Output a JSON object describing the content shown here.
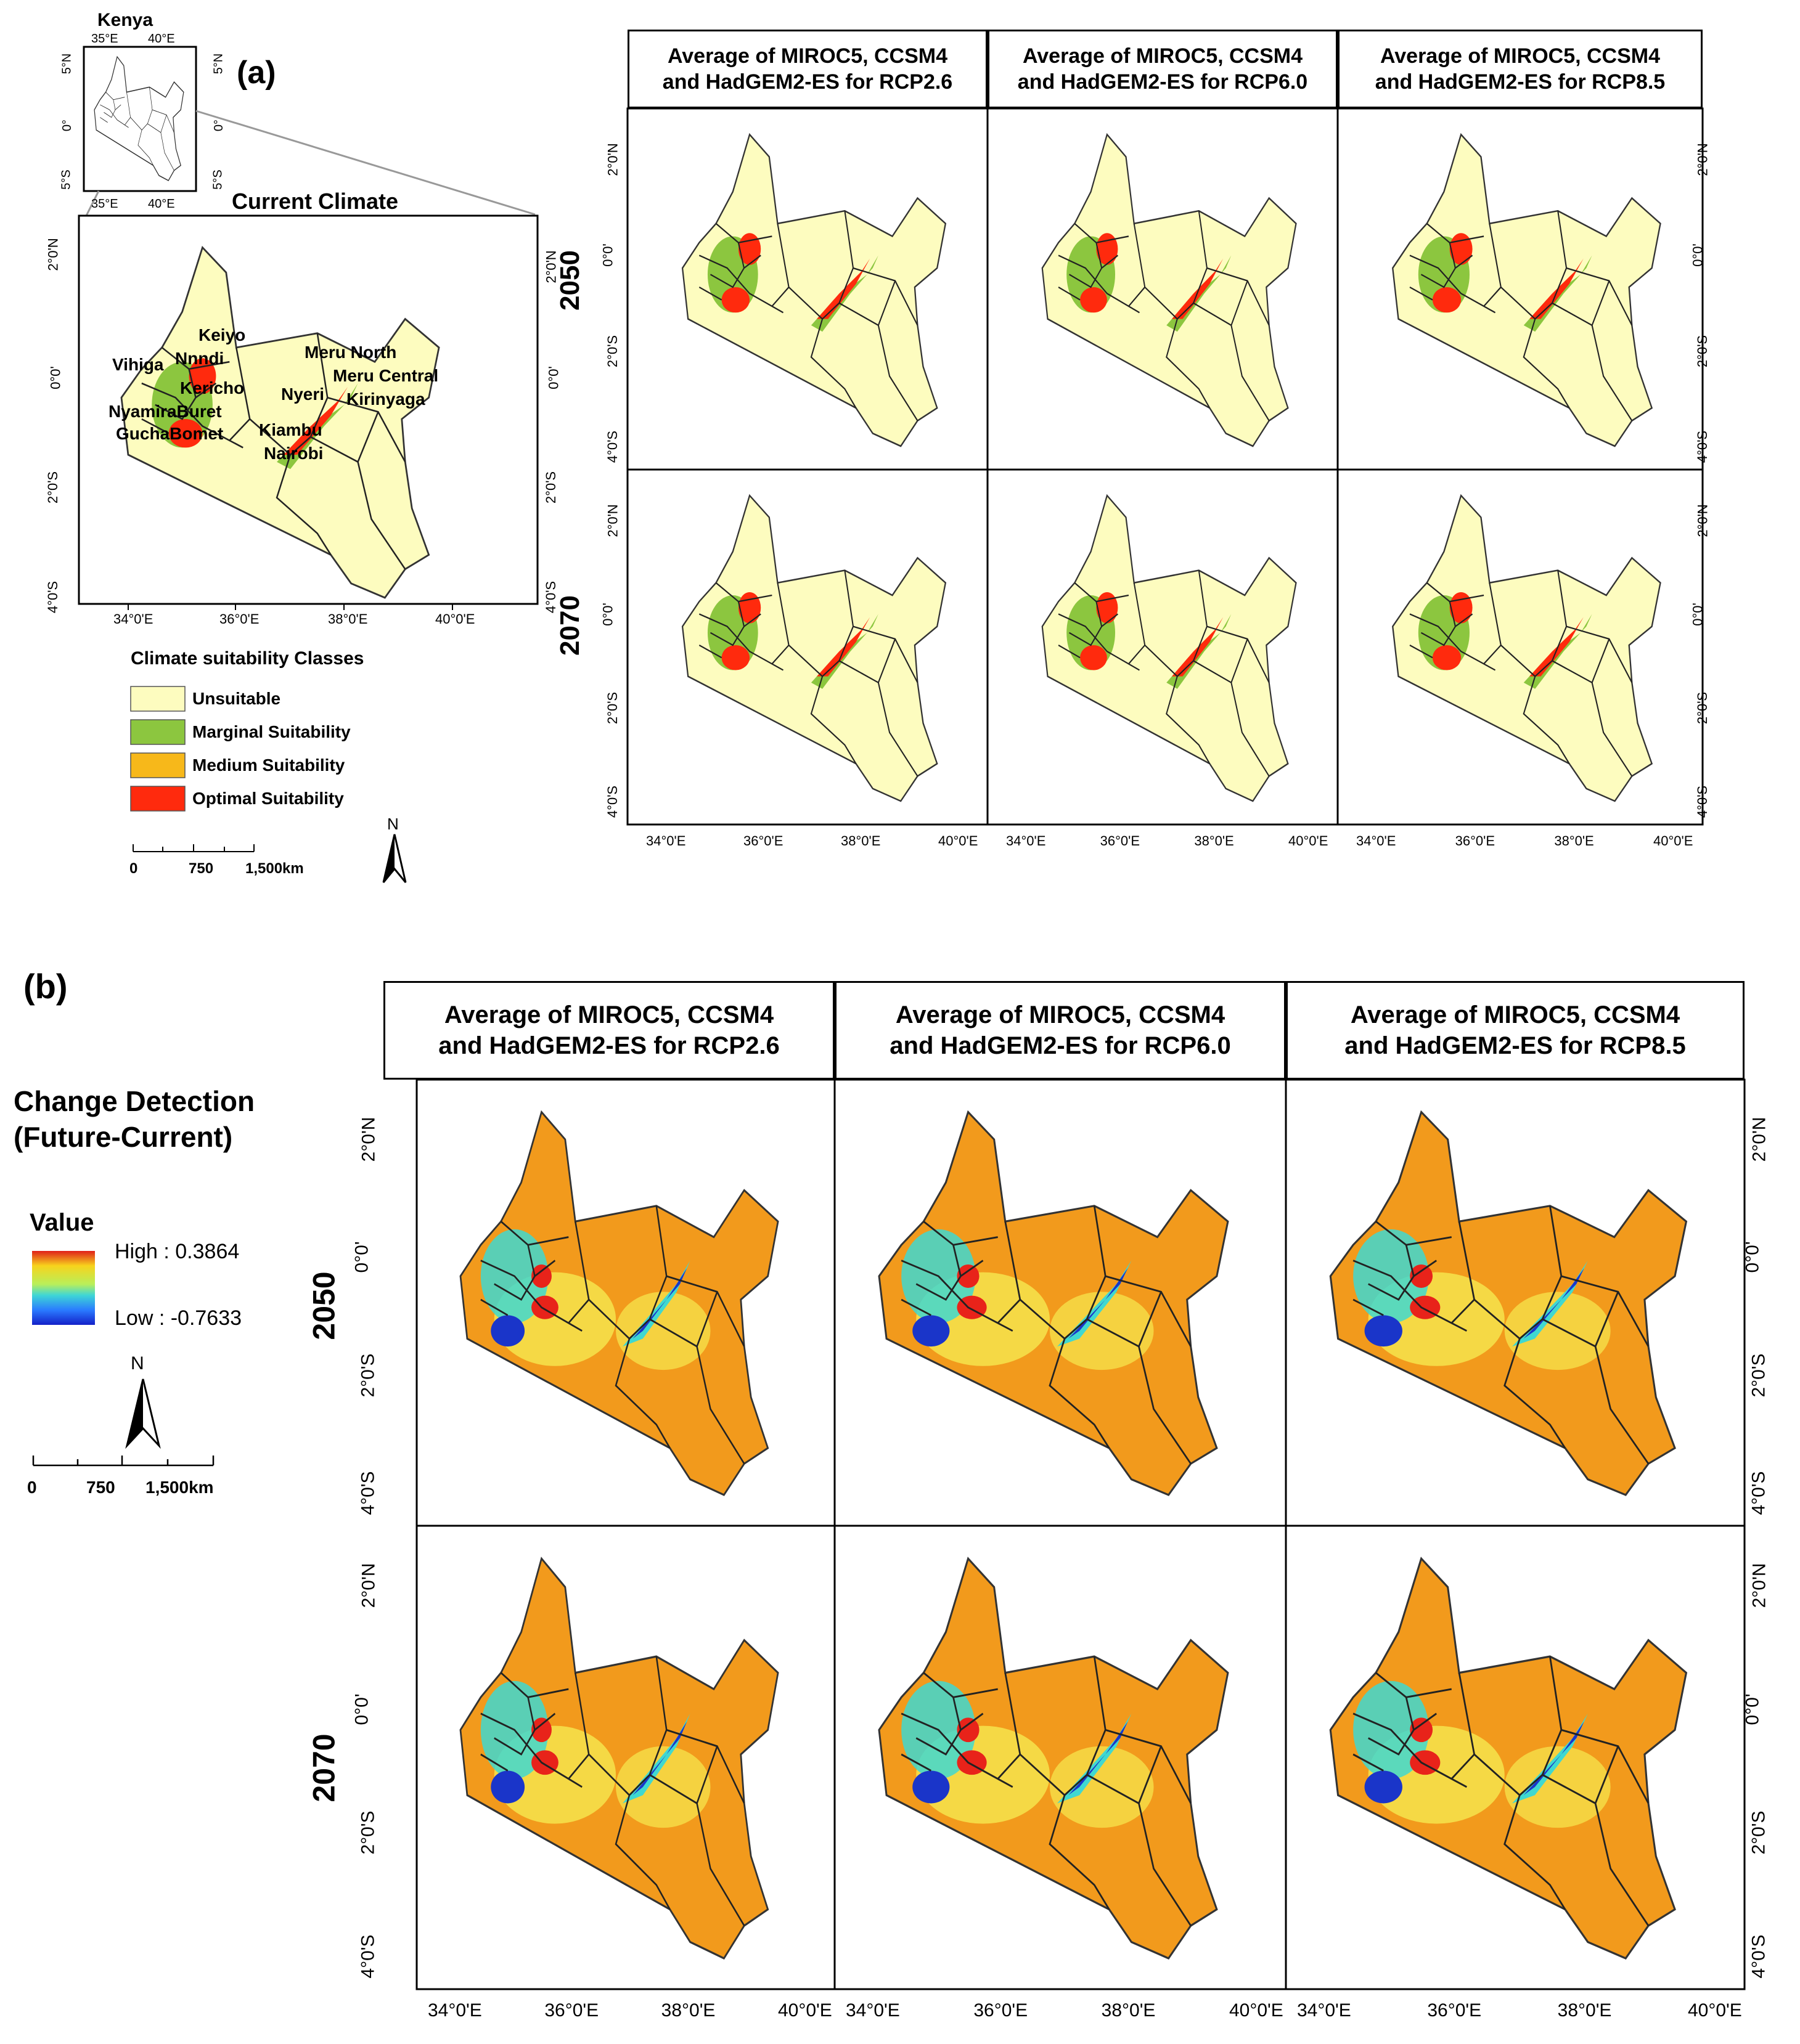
{
  "panel_a": {
    "label": "(a)",
    "inset": {
      "title": "Kenya",
      "ticks_top": [
        "35°E",
        "40°E"
      ],
      "ticks_bottom": [
        "35°E",
        "40°E"
      ],
      "ticks_left": [
        "5°N",
        "0°",
        "5°S"
      ],
      "ticks_right": [
        "5°N",
        "0°",
        "5°S"
      ]
    },
    "current_title": "Current Climate",
    "current_ticks_x": [
      "34°0'E",
      "36°0'E",
      "38°0'E",
      "40°0'E"
    ],
    "current_ticks_y": [
      "2°0'N",
      "0°0'",
      "2°0'S",
      "4°0'S"
    ],
    "county_labels": [
      "Keiyo",
      "Nnndi",
      "Vihiga",
      "Kericho",
      "NyamiraBuret",
      "GuchaBomet",
      "Meru North",
      "Meru Central",
      "Nyeri",
      "Kirinyaga",
      "Kiambu",
      "Nairobi"
    ],
    "legend_title": "Climate suitability Classes",
    "legend": [
      {
        "label": "Unsuitable",
        "color": "#fdfcbf"
      },
      {
        "label": "Marginal Suitability",
        "color": "#8cc63f"
      },
      {
        "label": "Medium Suitability",
        "color": "#f7b81a"
      },
      {
        "label": "Optimal Suitability",
        "color": "#ff2a0d"
      }
    ],
    "scale": [
      "0",
      "750",
      "1,500km"
    ],
    "north": "N",
    "columns": [
      "Average of MIROC5, CCSM4\nand HadGEM2-ES for RCP2.6",
      "Average of MIROC5, CCSM4\nand HadGEM2-ES for RCP6.0",
      "Average of MIROC5, CCSM4\nand HadGEM2-ES for RCP8.5"
    ],
    "rows": [
      "2050",
      "2070"
    ],
    "ticks_x": [
      "34°0'E",
      "36°0'E",
      "38°0'E",
      "40°0'E"
    ],
    "ticks_y": [
      "2°0'N",
      "0°0'",
      "2°0'S",
      "4°0'S"
    ]
  },
  "panel_b": {
    "label": "(b)",
    "legend_title_line1": "Change Detection",
    "legend_title_line2": "(Future-Current)",
    "value_label": "Value",
    "high": "High : 0.3864",
    "low": "Low : -0.7633",
    "scale": [
      "0",
      "750",
      "1,500km"
    ],
    "north": "N",
    "columns": [
      "Average of MIROC5, CCSM4\nand HadGEM2-ES for RCP2.6",
      "Average of MIROC5, CCSM4\nand HadGEM2-ES for RCP6.0",
      "Average of MIROC5, CCSM4\nand HadGEM2-ES for RCP8.5"
    ],
    "rows": [
      "2050",
      "2070"
    ],
    "ticks_x": [
      "34°0'E",
      "36°0'E",
      "38°0'E",
      "40°0'E"
    ],
    "ticks_y": [
      "2°0'N",
      "0°0'",
      "2°0'S",
      "4°0'S"
    ]
  },
  "colors": {
    "unsuitable": "#fdfcbf",
    "marginal": "#8cc63f",
    "medium": "#f7b81a",
    "optimal": "#ff2a0d",
    "change_base": "#f29a1c",
    "change_low": "#1a35c9",
    "change_mid": "#40d8d0",
    "change_high": "#e8231a"
  }
}
